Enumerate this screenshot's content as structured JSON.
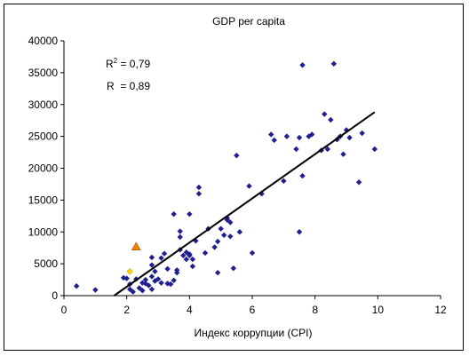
{
  "chart_data": {
    "type": "scatter",
    "title": "GDP per capita",
    "xlabel": "Индекс коррупции (CPI)",
    "ylabel": "",
    "xlim": [
      0,
      12
    ],
    "ylim": [
      0,
      40000
    ],
    "x_ticks": [
      0,
      2,
      4,
      6,
      8,
      10,
      12
    ],
    "y_ticks": [
      0,
      5000,
      10000,
      15000,
      20000,
      25000,
      30000,
      35000,
      40000
    ],
    "grid": false,
    "legend": "none",
    "annotations": [
      {
        "id": "r2",
        "text_pre": "R",
        "superscript": "2",
        "text_post": " = 0,79"
      },
      {
        "id": "r",
        "text": "R  = 0,89"
      }
    ],
    "colors": {
      "points": "#1f1f8f",
      "trendline": "#000000",
      "highlight_triangle": "#f08000",
      "highlight_diamond": "#ffd700"
    },
    "trendline": {
      "x0": 1.6,
      "y0": 0,
      "x1": 9.9,
      "y1": 28800
    },
    "series": [
      {
        "marker": "diamond",
        "points": [
          [
            0.4,
            1500
          ],
          [
            1.0,
            900
          ],
          [
            1.9,
            2800
          ],
          [
            2.0,
            2700
          ],
          [
            2.1,
            1800
          ],
          [
            2.1,
            1000
          ],
          [
            2.2,
            600
          ],
          [
            2.3,
            2600
          ],
          [
            2.4,
            1200
          ],
          [
            2.5,
            2000
          ],
          [
            2.5,
            800
          ],
          [
            2.6,
            1900
          ],
          [
            2.6,
            2500
          ],
          [
            2.7,
            1600
          ],
          [
            2.8,
            3000
          ],
          [
            2.8,
            1000
          ],
          [
            2.8,
            4800
          ],
          [
            2.8,
            6000
          ],
          [
            2.9,
            2300
          ],
          [
            2.9,
            3800
          ],
          [
            3.0,
            2600
          ],
          [
            3.1,
            2000
          ],
          [
            3.1,
            5900
          ],
          [
            3.2,
            6600
          ],
          [
            3.3,
            4200
          ],
          [
            3.3,
            1900
          ],
          [
            3.4,
            1800
          ],
          [
            3.5,
            2400
          ],
          [
            3.5,
            12800
          ],
          [
            3.6,
            4000
          ],
          [
            3.6,
            3600
          ],
          [
            3.7,
            7200
          ],
          [
            3.7,
            9200
          ],
          [
            3.7,
            10100
          ],
          [
            3.8,
            6300
          ],
          [
            3.9,
            5700
          ],
          [
            3.9,
            6800
          ],
          [
            4.0,
            12800
          ],
          [
            4.0,
            6500
          ],
          [
            4.0,
            6300
          ],
          [
            4.1,
            5700
          ],
          [
            4.1,
            4600
          ],
          [
            4.2,
            8600
          ],
          [
            4.3,
            16000
          ],
          [
            4.3,
            17000
          ],
          [
            4.5,
            6700
          ],
          [
            4.6,
            10500
          ],
          [
            4.8,
            7600
          ],
          [
            4.9,
            8500
          ],
          [
            4.9,
            3600
          ],
          [
            5.0,
            10500
          ],
          [
            5.1,
            9500
          ],
          [
            5.2,
            11900
          ],
          [
            5.2,
            12200
          ],
          [
            5.3,
            11500
          ],
          [
            5.3,
            9300
          ],
          [
            5.4,
            4300
          ],
          [
            5.5,
            22000
          ],
          [
            5.6,
            10000
          ],
          [
            5.9,
            17200
          ],
          [
            6.0,
            6700
          ],
          [
            6.3,
            16000
          ],
          [
            6.6,
            25300
          ],
          [
            6.7,
            24400
          ],
          [
            7.0,
            18000
          ],
          [
            7.1,
            25000
          ],
          [
            7.4,
            23000
          ],
          [
            7.5,
            10000
          ],
          [
            7.5,
            24800
          ],
          [
            7.6,
            36200
          ],
          [
            7.6,
            18800
          ],
          [
            7.8,
            25000
          ],
          [
            7.9,
            25300
          ],
          [
            8.2,
            22800
          ],
          [
            8.3,
            28500
          ],
          [
            8.4,
            23000
          ],
          [
            8.5,
            27600
          ],
          [
            8.6,
            36400
          ],
          [
            8.7,
            24500
          ],
          [
            8.8,
            25000
          ],
          [
            8.9,
            22200
          ],
          [
            9.0,
            26000
          ],
          [
            9.1,
            24800
          ],
          [
            9.4,
            17800
          ],
          [
            9.5,
            25500
          ],
          [
            9.9,
            23000
          ]
        ]
      },
      {
        "marker": "triangle",
        "points": [
          [
            2.3,
            7700
          ]
        ]
      },
      {
        "marker": "diamond-highlight",
        "points": [
          [
            2.1,
            3800
          ]
        ]
      }
    ]
  }
}
